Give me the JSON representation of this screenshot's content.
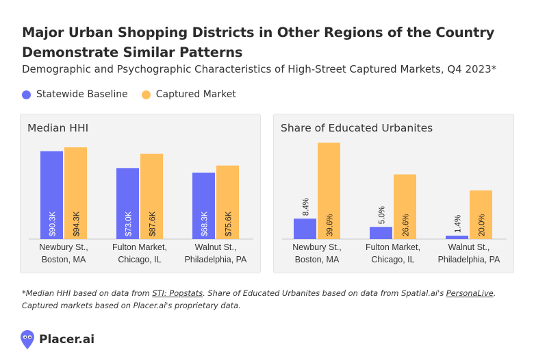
{
  "header": {
    "title": "Major Urban Shopping Districts in Other Regions of the Country Demonstrate Similar Patterns",
    "subtitle": "Demographic and Psychographic Characteristics of High-Street Captured Markets, Q4 2023*"
  },
  "legend": {
    "items": [
      {
        "label": "Statewide Baseline",
        "color": "#6a6ff7"
      },
      {
        "label": "Captured Market",
        "color": "#ffbf5c"
      }
    ]
  },
  "chart_data": [
    {
      "type": "bar",
      "title": "Median HHI",
      "categories": [
        [
          "Newbury St.,",
          "Boston, MA"
        ],
        [
          "Fulton Market,",
          "Chicago, IL"
        ],
        [
          "Walnut St.,",
          "Philadelphia, PA"
        ]
      ],
      "series": [
        {
          "name": "Statewide Baseline",
          "values": [
            90.3,
            73.0,
            68.3
          ],
          "labels": [
            "$90.3K",
            "$73.0K",
            "$68.3K"
          ],
          "color": "#6a6ff7"
        },
        {
          "name": "Captured Market",
          "values": [
            94.3,
            87.6,
            75.6
          ],
          "labels": [
            "$94.3K",
            "$87.6K",
            "$75.6K"
          ],
          "color": "#ffbf5c"
        }
      ],
      "ylim": [
        0,
        100
      ]
    },
    {
      "type": "bar",
      "title": "Share of Educated Urbanites",
      "categories": [
        [
          "Newbury St.,",
          "Boston, MA"
        ],
        [
          "Fulton Market,",
          "Chicago, IL"
        ],
        [
          "Walnut St.,",
          "Philadelphia, PA"
        ]
      ],
      "series": [
        {
          "name": "Statewide Baseline",
          "values": [
            8.4,
            5.0,
            1.4
          ],
          "labels": [
            "8.4%",
            "5.0%",
            "1.4%"
          ],
          "color": "#6a6ff7"
        },
        {
          "name": "Captured Market",
          "values": [
            39.6,
            26.6,
            20.0
          ],
          "labels": [
            "39.6%",
            "26.6%",
            "20.0%"
          ],
          "color": "#ffbf5c"
        }
      ],
      "ylim": [
        0,
        40
      ]
    }
  ],
  "footnote": {
    "part1": "*Median HHI based on data from ",
    "link1": "STI: Popstats",
    "part2": ". Share of Educated Urbanites based on data from Spatial.ai's ",
    "link2": "PersonaLive",
    "part3": ". Captured markets based on Placer.ai's proprietary data."
  },
  "brand": {
    "name": "Placer.ai",
    "color": "#6a6ff7"
  }
}
